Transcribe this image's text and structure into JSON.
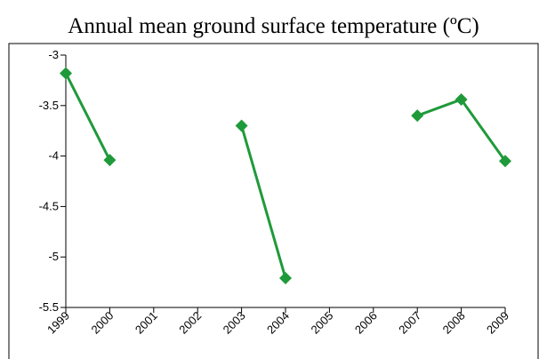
{
  "chart_data": {
    "type": "line",
    "title": "Annual mean ground surface temperature (ºC)",
    "xlabel": "",
    "ylabel": "",
    "x": [
      1999,
      2000,
      2001,
      2002,
      2003,
      2004,
      2005,
      2006,
      2007,
      2008,
      2009
    ],
    "x_tick_labels": [
      "1999",
      "2000",
      "2001",
      "2002",
      "2003",
      "2004",
      "2005",
      "2006",
      "2007",
      "2008",
      "2009"
    ],
    "y_tick_labels": [
      "-3",
      "-3.5",
      "-4",
      "-4.5",
      "-5",
      "-5.5"
    ],
    "y_ticks": [
      -3,
      -3.5,
      -4,
      -4.5,
      -5,
      -5.5
    ],
    "ylim": [
      -5.5,
      -3
    ],
    "xlim": [
      1999,
      2009
    ],
    "grid": false,
    "series": [
      {
        "values": [
          -3.18,
          -4.04,
          null,
          null,
          -3.7,
          -5.21,
          null,
          null,
          -3.6,
          -3.44,
          -4.05
        ],
        "color": "#1f9a3a",
        "marker": "diamond"
      }
    ]
  }
}
